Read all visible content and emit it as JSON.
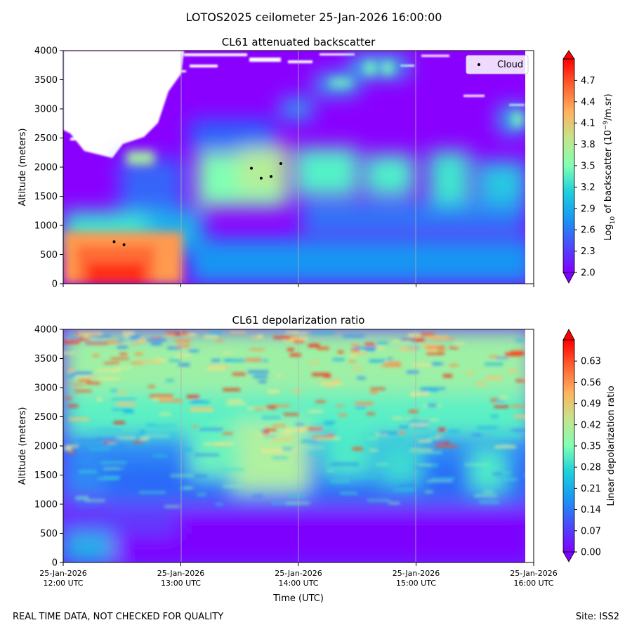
{
  "suptitle": "LOTOS2025 ceilometer 25-Jan-2026 16:00:00",
  "footer_left": "REAL TIME DATA, NOT CHECKED FOR QUALITY",
  "footer_right": "Site: ISS2",
  "chart_data": [
    {
      "type": "heatmap",
      "title": "CL61 attenuated backscatter",
      "ylabel": "Altitude (meters)",
      "xlabel": "",
      "ylim": [
        0,
        4000
      ],
      "xlim_hours": [
        12,
        16
      ],
      "y_ticks": [
        0,
        500,
        1000,
        1500,
        2000,
        2500,
        3000,
        3500,
        4000
      ],
      "x_ticks": [
        {
          "hour": 12,
          "date": "25-Jan-2026",
          "time": "12:00 UTC"
        },
        {
          "hour": 13,
          "date": "25-Jan-2026",
          "time": "13:00 UTC"
        },
        {
          "hour": 14,
          "date": "25-Jan-2026",
          "time": "14:00 UTC"
        },
        {
          "hour": 15,
          "date": "25-Jan-2026",
          "time": "15:00 UTC"
        },
        {
          "hour": 16,
          "date": "25-Jan-2026",
          "time": "16:00 UTC"
        }
      ],
      "colorbar": {
        "label_prefix": "Log",
        "label_sub": "10",
        "label_mid": " of backscatter (10",
        "label_sup": "−9",
        "label_suffix": "/m.sr)",
        "range": [
          2.0,
          5.0
        ],
        "ticks": [
          "2.0",
          "2.3",
          "2.6",
          "2.9",
          "3.2",
          "3.5",
          "3.8",
          "4.1",
          "4.4",
          "4.7"
        ],
        "extend": "both"
      },
      "legend": {
        "label": "Cloud",
        "location": "upper right"
      },
      "cloud_points": [
        {
          "hour": 12.433,
          "altitude": 720
        },
        {
          "hour": 12.517,
          "altitude": 670
        },
        {
          "hour": 13.6,
          "altitude": 1980
        },
        {
          "hour": 13.683,
          "altitude": 1810
        },
        {
          "hour": 13.767,
          "altitude": 1840
        },
        {
          "hour": 13.85,
          "altitude": 2060
        }
      ],
      "features": [
        {
          "name": "surface aerosol layer",
          "hours": [
            12.0,
            13.2
          ],
          "altitude": [
            0,
            1000
          ],
          "log_backscatter": 4.3
        },
        {
          "name": "cloud band",
          "hours": [
            13.1,
            16.0
          ],
          "altitude": [
            1400,
            2500
          ],
          "log_backscatter": 3.4
        },
        {
          "name": "boundary layer",
          "hours": [
            13.0,
            16.0
          ],
          "altitude": [
            0,
            700
          ],
          "log_backscatter": 2.8
        },
        {
          "name": "no-signal region",
          "hours": [
            12.0,
            12.9
          ],
          "altitude": [
            2300,
            4000
          ],
          "log_backscatter": null
        }
      ]
    },
    {
      "type": "heatmap",
      "title": "CL61 depolarization ratio",
      "ylabel": "Altitude (meters)",
      "xlabel": "Time (UTC)",
      "ylim": [
        0,
        4000
      ],
      "xlim_hours": [
        12,
        16
      ],
      "y_ticks": [
        0,
        500,
        1000,
        1500,
        2000,
        2500,
        3000,
        3500,
        4000
      ],
      "x_ticks": [
        {
          "hour": 12,
          "date": "25-Jan-2026",
          "time": "12:00 UTC"
        },
        {
          "hour": 13,
          "date": "25-Jan-2026",
          "time": "13:00 UTC"
        },
        {
          "hour": 14,
          "date": "25-Jan-2026",
          "time": "14:00 UTC"
        },
        {
          "hour": 15,
          "date": "25-Jan-2026",
          "time": "15:00 UTC"
        },
        {
          "hour": 16,
          "date": "25-Jan-2026",
          "time": "16:00 UTC"
        }
      ],
      "colorbar": {
        "label": "Linear depolarization ratio",
        "range": [
          0.0,
          0.7
        ],
        "ticks": [
          "0.00",
          "0.07",
          "0.14",
          "0.21",
          "0.28",
          "0.35",
          "0.42",
          "0.49",
          "0.56",
          "0.63"
        ],
        "extend": "both"
      },
      "features": [
        {
          "name": "low depolarization boundary layer",
          "hours": [
            12.0,
            16.0
          ],
          "altitude": [
            0,
            1000
          ],
          "ratio": 0.02
        },
        {
          "name": "cloud band",
          "hours": [
            13.0,
            16.0
          ],
          "altitude": [
            1200,
            2500
          ],
          "ratio": 0.3
        },
        {
          "name": "noisy upper region",
          "hours": [
            12.0,
            16.0
          ],
          "altitude": [
            2500,
            4000
          ],
          "ratio": 0.45
        }
      ]
    }
  ]
}
